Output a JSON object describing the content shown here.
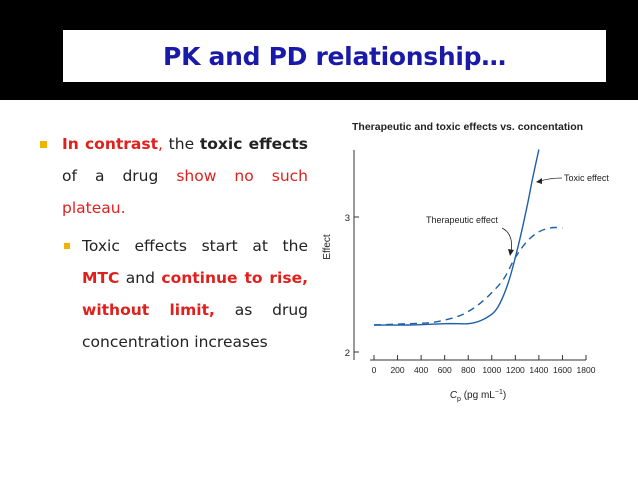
{
  "slide": {
    "title": "PK and PD relationship…",
    "bullet1": {
      "seg1": "In contrast",
      "seg2": ", ",
      "seg3": "the ",
      "seg4": "toxic effects",
      "seg5": " of a drug ",
      "seg6": "show no such plateau."
    },
    "bullet2": {
      "seg1": "Toxic effects start at the ",
      "seg2": "MTC",
      "seg3": " and ",
      "seg4": "continue to rise, without limit,",
      "seg5": " as drug concentration increases"
    }
  },
  "colors": {
    "title_blue": "#1a1aa8",
    "emphasis_red": "#e0201c",
    "bullet_gold": "#f2b300"
  },
  "chart_data": {
    "type": "line",
    "title": "Therapeutic and toxic effects vs. concentation",
    "ylabel": "Effect",
    "xlabel_main": "C",
    "xlabel_sub": "p",
    "xlabel_unit": " (pg mL",
    "xlabel_exp": "−1",
    "xlabel_close": ")",
    "xlim": [
      0,
      1800
    ],
    "ylim": [
      2,
      3.5
    ],
    "x_ticks": [
      0,
      200,
      400,
      600,
      800,
      1000,
      1200,
      1400,
      1600,
      1800
    ],
    "x_tick_labels": [
      "0",
      "200",
      "400",
      "600",
      "800",
      "1000",
      "1200",
      "1400",
      "1600",
      "1800"
    ],
    "y_ticks": [
      2,
      3
    ],
    "y_tick_labels": [
      "2",
      "3"
    ],
    "series": [
      {
        "name": "Therapeutic effect",
        "style": "dashed",
        "x": [
          0,
          300,
          500,
          700,
          800,
          900,
          1000,
          1100,
          1200,
          1300,
          1400,
          1500,
          1600
        ],
        "y": [
          2.2,
          2.21,
          2.22,
          2.26,
          2.3,
          2.36,
          2.44,
          2.54,
          2.7,
          2.82,
          2.89,
          2.92,
          2.92
        ]
      },
      {
        "name": "Toxic effect",
        "style": "solid",
        "x": [
          0,
          300,
          600,
          800,
          900,
          1000,
          1050,
          1100,
          1150,
          1200,
          1250,
          1300,
          1350,
          1400
        ],
        "y": [
          2.2,
          2.2,
          2.21,
          2.21,
          2.23,
          2.28,
          2.33,
          2.42,
          2.54,
          2.7,
          2.88,
          3.08,
          3.3,
          3.5
        ]
      }
    ]
  }
}
